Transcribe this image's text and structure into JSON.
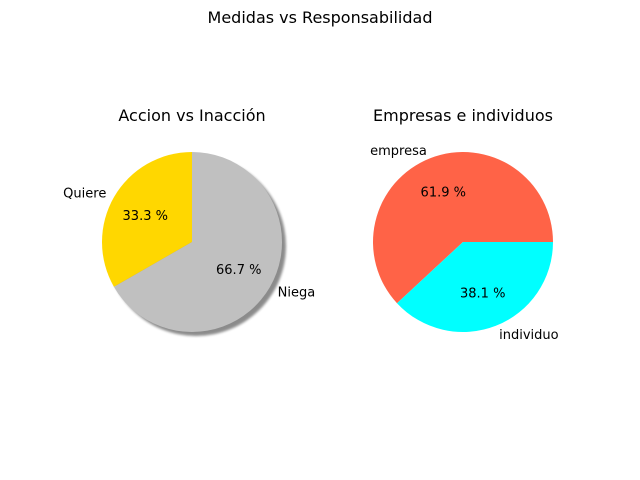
{
  "figure": {
    "suptitle": "Medidas vs Responsabilidad"
  },
  "chart_data": [
    {
      "type": "pie",
      "title": "Accion vs Inacción",
      "startangle": 90,
      "shadow": true,
      "slices": [
        {
          "label": "Quiere",
          "value": 33.3,
          "pct_label": "33.3 %",
          "color": "#FFD700"
        },
        {
          "label": "Niega",
          "value": 66.7,
          "pct_label": "66.7 %",
          "color": "#C0C0C0"
        }
      ]
    },
    {
      "type": "pie",
      "title": "Empresas e individuos",
      "startangle": 0,
      "shadow": false,
      "slices": [
        {
          "label": "empresa",
          "value": 61.9,
          "pct_label": "61.9 %",
          "color": "#FF6347"
        },
        {
          "label": "individuo",
          "value": 38.1,
          "pct_label": "38.1 %",
          "color": "#00FFFF"
        }
      ]
    }
  ]
}
